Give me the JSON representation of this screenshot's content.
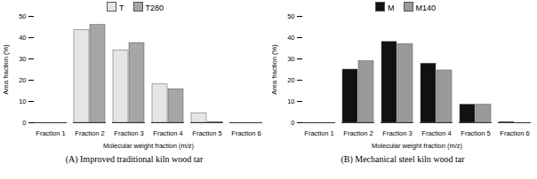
{
  "chart_data": [
    {
      "type": "bar",
      "title": "(A) Improved traditional kiln wood tar",
      "x_label": "Molecular weight fraction (m/z)",
      "y_label": "Area fraction (%)",
      "categories": [
        "Fraction 1",
        "Fraction 2",
        "Fraction 3",
        "Fraction 4",
        "Fraction 5",
        "Fraction 6"
      ],
      "series": [
        {
          "name": "T",
          "color": "#e6e6e6",
          "values": [
            0,
            43.5,
            34,
            18,
            4.5,
            0
          ]
        },
        {
          "name": "T280",
          "color": "#a6a6a6",
          "values": [
            0,
            46,
            37.5,
            15.8,
            0.3,
            0
          ]
        }
      ],
      "ylim": [
        0,
        50
      ],
      "yticks": [
        0,
        10,
        20,
        30,
        40,
        50
      ],
      "grid": false,
      "legend": "top"
    },
    {
      "type": "bar",
      "title": "(B) Mechanical steel kiln wood tar",
      "x_label": "Molecular weight fraction (m/z)",
      "y_label": "Area fraction (%)",
      "categories": [
        "Fraction 1",
        "Fraction 2",
        "Fraction 3",
        "Fraction 4",
        "Fraction 5",
        "Fraction 6"
      ],
      "series": [
        {
          "name": "M",
          "color": "#111111",
          "values": [
            0,
            25,
            38,
            27.8,
            8.5,
            0.3
          ]
        },
        {
          "name": "M140",
          "color": "#9a9a9a",
          "values": [
            0,
            29,
            37,
            24.6,
            8.5,
            0
          ]
        }
      ],
      "ylim": [
        0,
        50
      ],
      "yticks": [
        0,
        10,
        20,
        30,
        40,
        50
      ],
      "grid": false,
      "legend": "top"
    }
  ]
}
